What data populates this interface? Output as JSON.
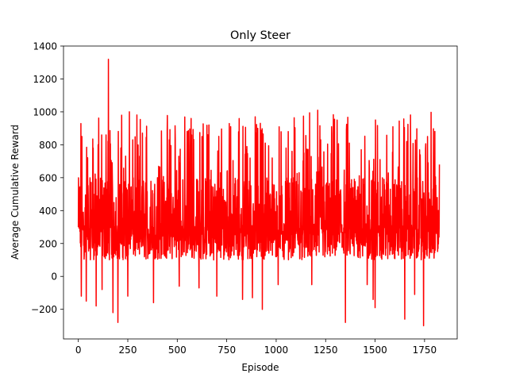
{
  "chart_data": {
    "type": "line",
    "title": "Only Steer",
    "xlabel": "Episode",
    "ylabel": "Average Cumulative Reward",
    "xlim": [
      -75,
      1915
    ],
    "ylim": [
      -380,
      1400
    ],
    "xticks": [
      0,
      250,
      500,
      750,
      1000,
      1250,
      1500,
      1750
    ],
    "yticks": [
      -200,
      0,
      200,
      400,
      600,
      800,
      1000,
      1200,
      1400
    ],
    "grid": false,
    "legend": "none",
    "series": [
      {
        "color": "#ff0000",
        "episodes": 1825,
        "typical_range": [
          100,
          650
        ],
        "notable_points": [
          {
            "x": 0,
            "y": 300
          },
          {
            "x": 15,
            "y": -120
          },
          {
            "x": 18,
            "y": 850
          },
          {
            "x": 40,
            "y": -150
          },
          {
            "x": 75,
            "y": 780
          },
          {
            "x": 90,
            "y": -180
          },
          {
            "x": 100,
            "y": 800
          },
          {
            "x": 120,
            "y": -80
          },
          {
            "x": 140,
            "y": 860
          },
          {
            "x": 152,
            "y": 1320
          },
          {
            "x": 175,
            "y": -220
          },
          {
            "x": 200,
            "y": -280
          },
          {
            "x": 215,
            "y": 780
          },
          {
            "x": 250,
            "y": -120
          },
          {
            "x": 258,
            "y": 1000
          },
          {
            "x": 275,
            "y": 830
          },
          {
            "x": 310,
            "y": 730
          },
          {
            "x": 380,
            "y": -160
          },
          {
            "x": 460,
            "y": 830
          },
          {
            "x": 490,
            "y": 830
          },
          {
            "x": 510,
            "y": -60
          },
          {
            "x": 550,
            "y": 880
          },
          {
            "x": 570,
            "y": 960
          },
          {
            "x": 610,
            "y": -70
          },
          {
            "x": 625,
            "y": 850
          },
          {
            "x": 660,
            "y": 920
          },
          {
            "x": 700,
            "y": -120
          },
          {
            "x": 770,
            "y": 910
          },
          {
            "x": 830,
            "y": -140
          },
          {
            "x": 850,
            "y": 770
          },
          {
            "x": 880,
            "y": -130
          },
          {
            "x": 920,
            "y": 930
          },
          {
            "x": 930,
            "y": -200
          },
          {
            "x": 945,
            "y": 810
          },
          {
            "x": 980,
            "y": 720
          },
          {
            "x": 1010,
            "y": -50
          },
          {
            "x": 1050,
            "y": 780
          },
          {
            "x": 1080,
            "y": 760
          },
          {
            "x": 1140,
            "y": 750
          },
          {
            "x": 1180,
            "y": -50
          },
          {
            "x": 1210,
            "y": 1010
          },
          {
            "x": 1225,
            "y": 830
          },
          {
            "x": 1280,
            "y": 910
          },
          {
            "x": 1350,
            "y": -280
          },
          {
            "x": 1370,
            "y": 810
          },
          {
            "x": 1430,
            "y": 770
          },
          {
            "x": 1460,
            "y": -50
          },
          {
            "x": 1490,
            "y": -140
          },
          {
            "x": 1500,
            "y": -190
          },
          {
            "x": 1545,
            "y": 590
          },
          {
            "x": 1590,
            "y": 910
          },
          {
            "x": 1650,
            "y": -260
          },
          {
            "x": 1660,
            "y": 820
          },
          {
            "x": 1680,
            "y": 680
          },
          {
            "x": 1700,
            "y": -110
          },
          {
            "x": 1745,
            "y": -300
          },
          {
            "x": 1765,
            "y": 850
          },
          {
            "x": 1785,
            "y": 420
          },
          {
            "x": 1800,
            "y": 600
          },
          {
            "x": 1825,
            "y": 680
          }
        ]
      }
    ]
  }
}
